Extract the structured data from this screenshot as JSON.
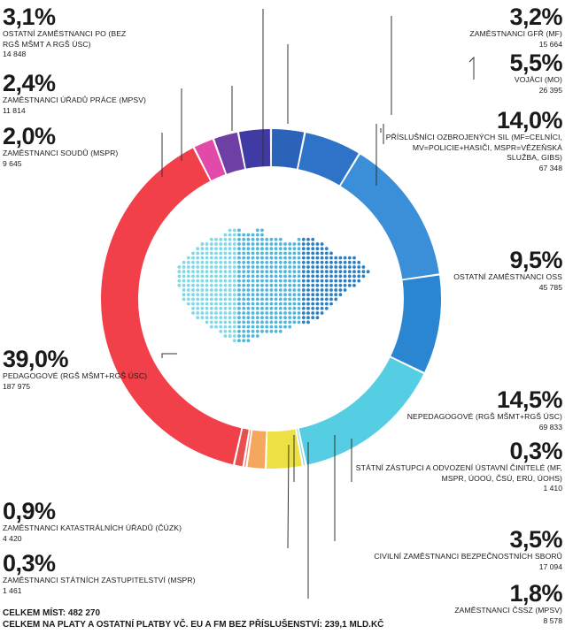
{
  "chart_data": {
    "type": "pie",
    "donut": true,
    "slices": [
      {
        "pct_label": "3,2%",
        "value": 3.2,
        "label": "Zaměstnanci GFŘ (MF)",
        "count": "15 664",
        "color": "#2b63b8"
      },
      {
        "pct_label": "5,5%",
        "value": 5.5,
        "label": "",
        "count": "",
        "color": "#2f73c8"
      },
      {
        "pct_label": "14,0%",
        "value": 14.0,
        "label": "Příslušníci ozbrojených sil (MF=celníci, MV=policie+hasiči, MSPR=vězeňská služba, GIBS)",
        "count": "67 348",
        "color": "#3a8fd8"
      },
      {
        "pct_label": "9,5%",
        "value": 9.5,
        "label": "Ostatní zaměstnanci OSS",
        "count": "45 785",
        "color": "#2a86d0"
      },
      {
        "pct_label": "14,5%",
        "value": 14.5,
        "label": "Nepedagogové (RgŠ MŠMT+RgŠ ÚSC)",
        "count": "69 833",
        "color": "#55cde3"
      },
      {
        "pct_label": "0,3%",
        "value": 0.3,
        "label": "Státní zástupci a odvození ústavní činitelé (MF, MSPR, ÚOOÚ, ČSÚ, ERÚ, ÚOHS)",
        "count": "1 410",
        "color": "#9cd6d2"
      },
      {
        "pct_label": "3,5%",
        "value": 3.5,
        "label": "Civilní zaměstnanci bezpečnostních sborů",
        "count": "17 094",
        "color": "#ece044"
      },
      {
        "pct_label": "1,8%",
        "value": 1.8,
        "label": "Zaměstnanci ČSSZ (MPSV)",
        "count": "8 578",
        "color": "#f6a75e"
      },
      {
        "pct_label": "0,3%",
        "value": 0.3,
        "label": "Zaměstnanci státních zastupitelství (MSPR)",
        "count": "1 461",
        "color": "#f58c7a"
      },
      {
        "pct_label": "0,9%",
        "value": 0.9,
        "label": "Zaměstnanci katastrálních úřadů (ČÚZK)",
        "count": "4 420",
        "color": "#e8504f"
      },
      {
        "pct_label": "39,0%",
        "value": 39.0,
        "label": "Pedagogové (RgŠ MŠMT+RgŠ ÚSC)",
        "count": "187 975",
        "color": "#f2404a"
      },
      {
        "pct_label": "2,0%",
        "value": 2.0,
        "label": "Zaměstnanci soudů (MSPR)",
        "count": "9 645",
        "color": "#e14aa9"
      },
      {
        "pct_label": "2,4%",
        "value": 2.4,
        "label": "Zaměstnanci úřadů práce (MPSV)",
        "count": "11 814",
        "color": "#6e3fa5"
      },
      {
        "pct_label": "3,1%",
        "value": 3.1,
        "label": "Ostatní zaměstnanci PO (bez RgŠ MŠMT a RgŠ ÚSC)",
        "count": "14 848",
        "color": "#3f3aa4"
      }
    ],
    "extra_labels": [
      {
        "pct_label": "5,5%",
        "label": "Vojáci (MO)",
        "count": "26 395"
      }
    ],
    "center_image": "czech-republic-dot-map",
    "map_colors": [
      "#2b7fc4",
      "#4fb6dc",
      "#7fd9e8"
    ]
  },
  "footer": {
    "line1": "CELKEM MÍST: 482 270",
    "line2": "CELKEM NA PLATY A OSTATNÍ PLATBY VČ. EU A FM BEZ PŘÍSLUŠENSTVÍ: 239,1 MLD.KČ"
  }
}
